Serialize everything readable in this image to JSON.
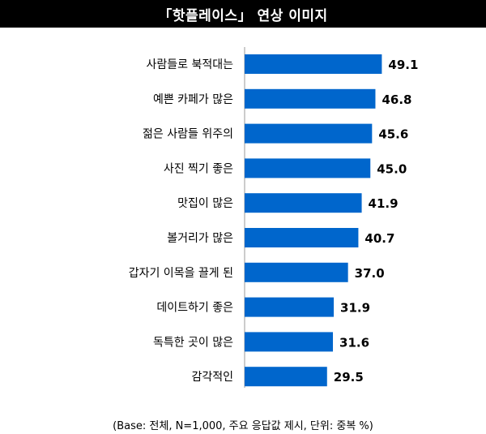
{
  "chart_data": {
    "type": "bar",
    "orientation": "horizontal",
    "title": "「핫플레이스」 연상 이미지",
    "categories": [
      "사람들로 북적대는",
      "예쁜 카페가 많은",
      "젊은 사람들 위주의",
      "사진 찍기 좋은",
      "맛집이 많은",
      "볼거리가 많은",
      "갑자기 이목을 끌게 된",
      "데이트하기 좋은",
      "독특한 곳이 많은",
      "감각적인"
    ],
    "values": [
      49.1,
      46.8,
      45.6,
      45.0,
      41.9,
      40.7,
      37.0,
      31.9,
      31.6,
      29.5
    ],
    "value_labels": [
      "49.1",
      "46.8",
      "45.6",
      "45.0",
      "41.9",
      "40.7",
      "37.0",
      "31.9",
      "31.6",
      "29.5"
    ],
    "xlim": [
      0,
      100
    ],
    "bar_color": "#0066cc",
    "grid": false,
    "footnote": "(Base: 전체, N=1,000, 주요 응답값 제시, 단위: 중복 %)"
  }
}
